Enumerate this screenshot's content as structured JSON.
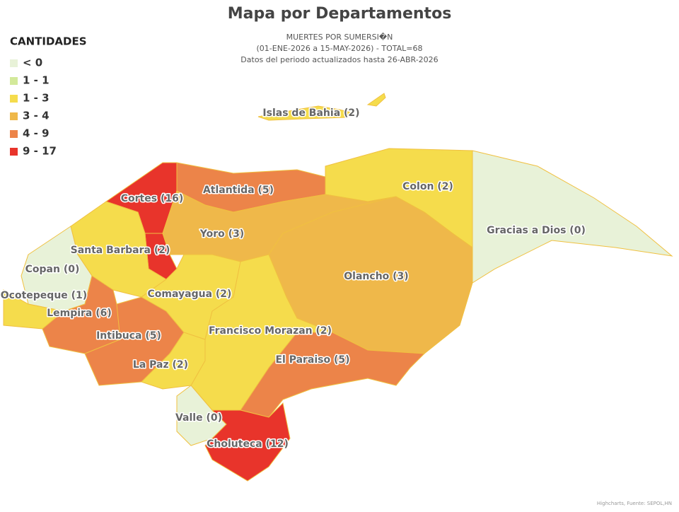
{
  "chart_data": {
    "type": "map",
    "title": "Mapa por Departamentos",
    "subtitle": [
      "MUERTES POR SUMERSI�N",
      "(01-ENE-2026 a 15-MAY-2026) - TOTAL=68",
      "Datos del periodo actualizados hasta 26-ABR-2026"
    ],
    "credits": "Highcharts, Fuente: SEPOL,HN",
    "legend": {
      "title": "CANTIDADES",
      "position": "top-left",
      "items": [
        {
          "label": "< 0",
          "color": "#e8f2d8"
        },
        {
          "label": "1 - 1",
          "color": "#d3e99a"
        },
        {
          "label": "1 - 3",
          "color": "#f5dc4c"
        },
        {
          "label": "3 - 4",
          "color": "#efb84a"
        },
        {
          "label": "4 - 9",
          "color": "#ec8449"
        },
        {
          "label": "9 - 17",
          "color": "#e8342b"
        }
      ]
    },
    "values": [
      2,
      16,
      5,
      2,
      0,
      3,
      3,
      2,
      0,
      1,
      6,
      5,
      2,
      2,
      5,
      2,
      0,
      12
    ],
    "value_labels": [
      "Islas de Bahia (2)",
      "Cortes (16)",
      "Atlantida (5)",
      "Colon (2)",
      "Gracias a Dios (0)",
      "Yoro (3)",
      "Olancho (3)",
      "Santa Barbara (2)",
      "Copan (0)",
      "Ocotepeque (1)",
      "Lempira (6)",
      "Intibuca (5)",
      "Comayagua (2)",
      "Francisco Morazan (2)",
      "El Paraiso (5)",
      "La Paz (2)",
      "Valle (0)",
      "Choluteca (12)"
    ],
    "colors": [
      "#f5dc4c",
      "#e8342b",
      "#ec8449",
      "#f5dc4c",
      "#e8f2d8",
      "#efb84a",
      "#efb84a",
      "#f5dc4c",
      "#e8f2d8",
      "#f5dc4c",
      "#ec8449",
      "#ec8449",
      "#f5dc4c",
      "#f5dc4c",
      "#ec8449",
      "#f5dc4c",
      "#e8f2d8",
      "#e8342b"
    ]
  }
}
